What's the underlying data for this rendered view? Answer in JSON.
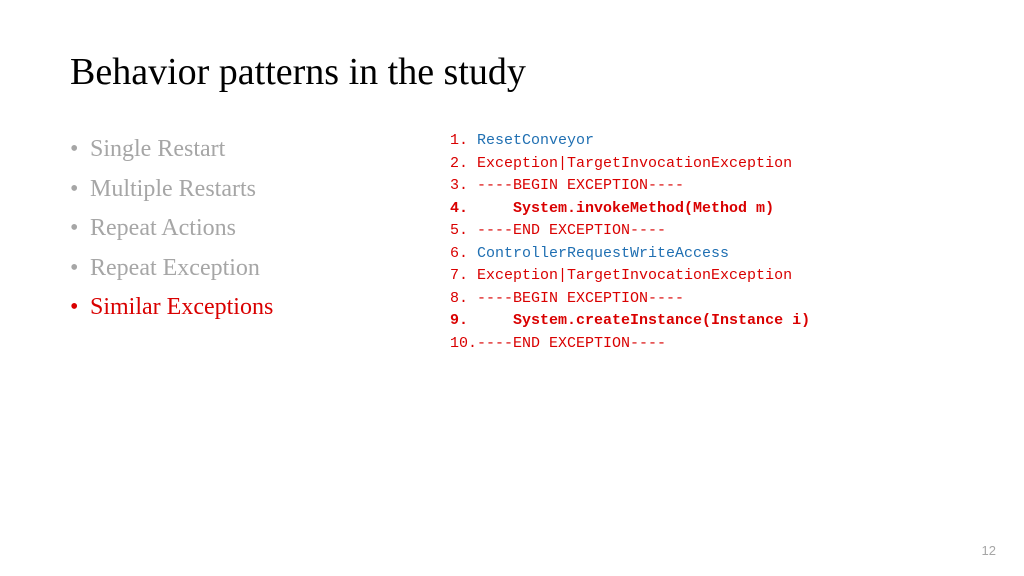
{
  "title": "Behavior patterns in the study",
  "bullets": [
    {
      "label": "Single Restart",
      "active": false
    },
    {
      "label": "Multiple Restarts",
      "active": false
    },
    {
      "label": "Repeat Actions",
      "active": false
    },
    {
      "label": "Repeat Exception",
      "active": false
    },
    {
      "label": "Similar Exceptions",
      "active": true
    }
  ],
  "code_lines": [
    {
      "num": "1. ",
      "text": "ResetConveyor",
      "color": "blue",
      "bold": false
    },
    {
      "num": "2. ",
      "text": "Exception|TargetInvocationException",
      "color": "red",
      "bold": false
    },
    {
      "num": "3. ",
      "text": "----BEGIN EXCEPTION----",
      "color": "red",
      "bold": false
    },
    {
      "num": "4. ",
      "text": "    System.invokeMethod(Method m)",
      "color": "red",
      "bold": true
    },
    {
      "num": "5. ",
      "text": "----END EXCEPTION----",
      "color": "red",
      "bold": false
    },
    {
      "num": "6. ",
      "text": "ControllerRequestWriteAccess",
      "color": "blue",
      "bold": false
    },
    {
      "num": "7. ",
      "text": "Exception|TargetInvocationException",
      "color": "red",
      "bold": false
    },
    {
      "num": "8. ",
      "text": "----BEGIN EXCEPTION----",
      "color": "red",
      "bold": false
    },
    {
      "num": "9. ",
      "text": "    System.createInstance(Instance i)",
      "color": "red",
      "bold": true
    },
    {
      "num": "10.",
      "text": "----END EXCEPTION----",
      "color": "red",
      "bold": false
    }
  ],
  "colors": {
    "red": "#d90000",
    "blue": "#1f6fb2",
    "inactive_gray": "#a6a6a6",
    "title_black": "#000000",
    "background": "#ffffff"
  },
  "typography": {
    "title_fontsize": 38,
    "bullet_fontsize": 24,
    "code_fontsize": 15,
    "title_font": "serif",
    "code_font": "monospace"
  },
  "page_number": "12"
}
